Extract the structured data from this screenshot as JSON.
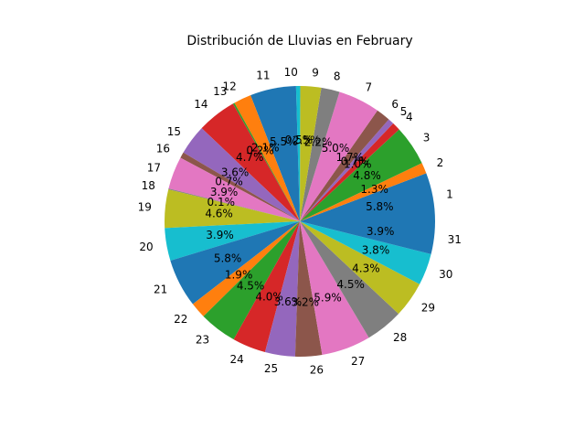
{
  "chart_data": {
    "type": "pie",
    "title": "Distribución de Lluvias en February",
    "categories": [
      "1",
      "2",
      "3",
      "4",
      "5",
      "6",
      "7",
      "8",
      "9",
      "10",
      "11",
      "12",
      "13",
      "14",
      "15",
      "16",
      "17",
      "18",
      "19",
      "20",
      "21",
      "22",
      "23",
      "24",
      "25",
      "26",
      "27",
      "28",
      "29",
      "30",
      "31"
    ],
    "values": [
      5.8,
      1.3,
      4.8,
      1.0,
      0.7,
      1.7,
      5.0,
      2.2,
      2.5,
      0.5,
      5.5,
      2.1,
      0.2,
      4.7,
      3.6,
      0.7,
      3.9,
      0.1,
      4.6,
      3.9,
      5.8,
      1.9,
      4.5,
      4.0,
      3.6,
      3.2,
      5.9,
      4.5,
      4.3,
      3.8,
      3.9
    ],
    "percent_labels": [
      "5.8%",
      "1.3%",
      "4.8%",
      "1.0%",
      "0.7%",
      "1.7%",
      "5.0%",
      "2.2%",
      "2.5%",
      "0.5%",
      "5.5%",
      "2.1%",
      "0.2%",
      "4.7%",
      "3.6%",
      "0.7%",
      "3.9%",
      "0.1%",
      "4.6%",
      "3.9%",
      "5.8%",
      "1.9%",
      "4.5%",
      "4.0%",
      "3.6%",
      "3.2%",
      "5.9%",
      "4.5%",
      "4.3%",
      "3.8%",
      "3.9%"
    ],
    "colors": [
      "#1f77b4",
      "#ff7f0e",
      "#2ca02c",
      "#d62728",
      "#9467bd",
      "#8c564b",
      "#e377c2",
      "#7f7f7f",
      "#bcbd22",
      "#17becf"
    ],
    "start_angle_deg": 0,
    "direction": "counterclockwise",
    "legend": "none"
  }
}
